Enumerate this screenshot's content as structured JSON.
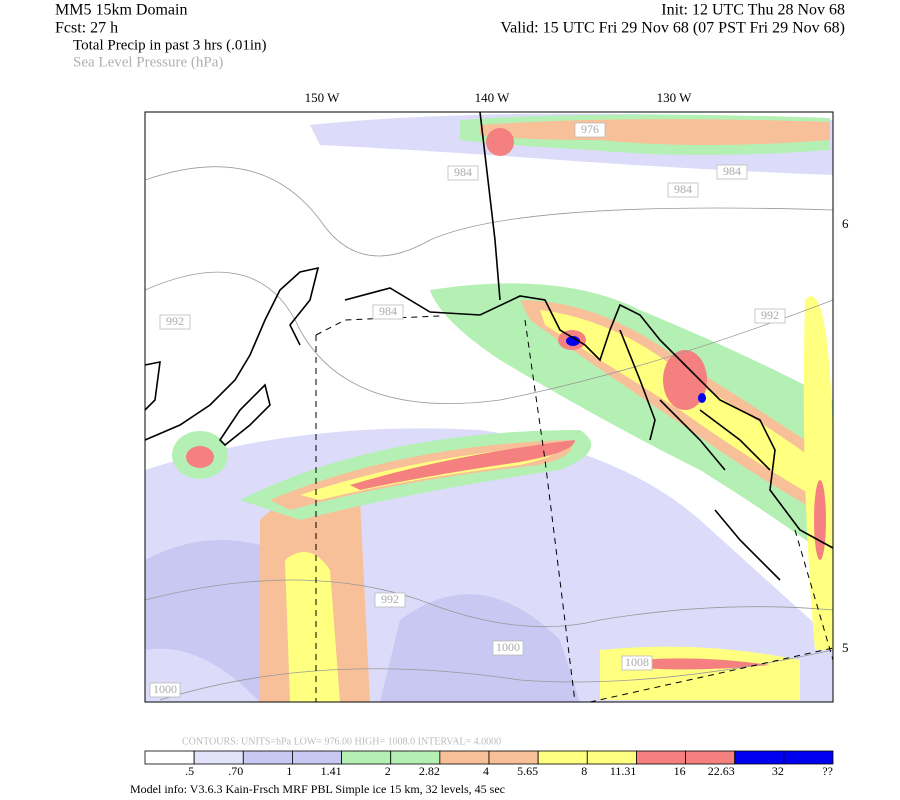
{
  "header": {
    "left": [
      "MM5 15km Domain",
      "Fcst:   27 h",
      "Total Precip in past 3 hrs (.01in)",
      "Sea Level Pressure (hPa)"
    ],
    "right": [
      "Init: 12 UTC Thu 28 Nov 68",
      "Valid: 15 UTC Fri 29 Nov 68 (07 PST Fri 29 Nov 68)"
    ]
  },
  "map": {
    "lon_labels": [
      "150 W",
      "140 W",
      "130 W"
    ],
    "lat_labels": [
      "6",
      "5"
    ],
    "contour_labels": [
      "976",
      "984",
      "984",
      "984",
      "992",
      "984",
      "992",
      "992",
      "1000",
      "1008",
      "1000"
    ]
  },
  "contours_info": "CONTOURS:  UNITS=hPa  LOW=  976.00       HIGH=  1008.0       INTERVAL=   4.0000",
  "colorbar": {
    "labels": [
      ".5",
      ".70",
      "1",
      "1.41",
      "2",
      "2.82",
      "4",
      "5.65",
      "8",
      "11.31",
      "16",
      "22.63",
      "32",
      "??"
    ],
    "colors": [
      "#ffffff",
      "#e2e2fa",
      "#c8c8f2",
      "#c8c8f2",
      "#b4f0b4",
      "#b4f0b4",
      "#f8c098",
      "#f8c098",
      "#ffff80",
      "#ffff80",
      "#f58080",
      "#f58080",
      "#0000f0",
      "#0000f0"
    ]
  },
  "footer": "Model info: V3.6.3 Kain-Frsch MRF PBL    Simple ice   15 km,  32 levels,   45 sec"
}
